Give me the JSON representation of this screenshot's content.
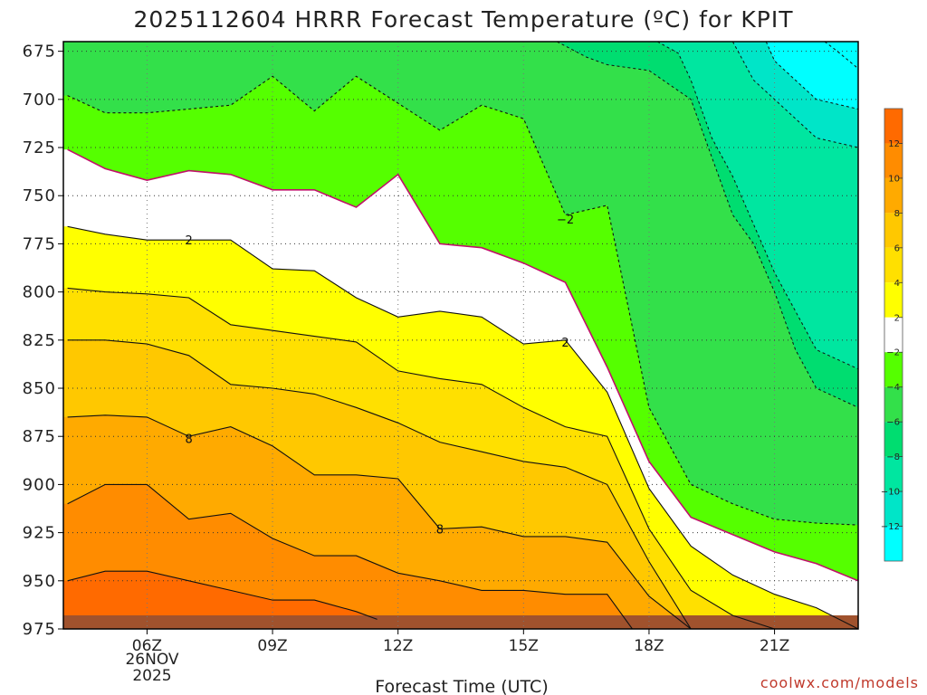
{
  "chart_data": {
    "type": "area",
    "title": "2025112604 HRRR Forecast Temperature (ºC) for KPIT",
    "xlabel": "Forecast Time (UTC)",
    "ylabel": "",
    "date_labels": [
      "26NOV",
      "2025"
    ],
    "credit": "coolwx.com/models",
    "x_range": [
      4,
      23
    ],
    "y_range": [
      975,
      670
    ],
    "x_ticks": [
      {
        "value": 6,
        "label": "06Z"
      },
      {
        "value": 9,
        "label": "09Z"
      },
      {
        "value": 12,
        "label": "12Z"
      },
      {
        "value": 15,
        "label": "15Z"
      },
      {
        "value": 18,
        "label": "18Z"
      },
      {
        "value": 21,
        "label": "21Z"
      }
    ],
    "y_ticks": [
      675,
      700,
      725,
      750,
      775,
      800,
      825,
      850,
      875,
      900,
      925,
      950,
      975
    ],
    "colorbar": {
      "levels": [
        -14,
        -12,
        -10,
        -8,
        -6,
        -4,
        -2,
        2,
        4,
        6,
        8,
        10,
        12,
        14
      ],
      "tick_labels": [
        "12",
        "10",
        "8",
        "6",
        "4",
        "2",
        "−2",
        "−4",
        "−6",
        "−8",
        "−10",
        "−12"
      ],
      "tick_values": [
        12,
        10,
        8,
        6,
        4,
        2,
        -2,
        -4,
        -6,
        -8,
        -10,
        -12
      ],
      "colors": [
        "#00FFFF",
        "#00E5C8",
        "#00E6A0",
        "#00DD70",
        "#33E04A",
        "#55FF00",
        "#FFFFFF",
        "#FFFF00",
        "#FFE000",
        "#FFC800",
        "#FFAA00",
        "#FF8C00",
        "#FF6A00"
      ]
    },
    "series": [
      {
        "name": "-2",
        "zone": "#55FF00",
        "points": [
          [
            4.1,
            698
          ],
          [
            5,
            707
          ],
          [
            6,
            707
          ],
          [
            7,
            705
          ],
          [
            8,
            703
          ],
          [
            9,
            688
          ],
          [
            10,
            706
          ],
          [
            11,
            688
          ],
          [
            12,
            702
          ],
          [
            13,
            716
          ],
          [
            14,
            703
          ],
          [
            15,
            710
          ],
          [
            16,
            760
          ],
          [
            17,
            755
          ],
          [
            18,
            860
          ],
          [
            19,
            900
          ],
          [
            20,
            910
          ],
          [
            21,
            918
          ],
          [
            22,
            920
          ],
          [
            23,
            921
          ]
        ]
      },
      {
        "name": "0",
        "zone": "#FFFFFF",
        "points": [
          [
            4.1,
            726
          ],
          [
            5,
            736
          ],
          [
            6,
            742
          ],
          [
            7,
            737
          ],
          [
            8,
            739
          ],
          [
            9,
            747
          ],
          [
            10,
            747
          ],
          [
            11,
            756
          ],
          [
            12,
            739
          ],
          [
            13,
            775
          ],
          [
            14,
            777
          ],
          [
            15,
            785
          ],
          [
            16,
            795
          ],
          [
            17,
            839
          ],
          [
            18,
            888
          ],
          [
            19,
            917
          ],
          [
            20,
            926
          ],
          [
            21,
            935
          ],
          [
            22,
            941
          ],
          [
            23,
            950
          ]
        ]
      },
      {
        "name": "2",
        "zone": "#FFFF00",
        "points": [
          [
            4.1,
            766
          ],
          [
            5,
            770
          ],
          [
            6,
            773
          ],
          [
            7,
            773
          ],
          [
            8,
            773
          ],
          [
            9,
            788
          ],
          [
            10,
            789
          ],
          [
            11,
            803
          ],
          [
            12,
            813
          ],
          [
            13,
            810
          ],
          [
            14,
            813
          ],
          [
            15,
            827
          ],
          [
            16,
            825
          ],
          [
            17,
            852
          ],
          [
            18,
            902
          ],
          [
            19,
            932
          ],
          [
            20,
            947
          ],
          [
            21,
            957
          ],
          [
            22,
            964
          ],
          [
            23,
            975
          ]
        ]
      },
      {
        "name": "4",
        "zone": "#FFE000",
        "points": [
          [
            4.1,
            798
          ],
          [
            5,
            800
          ],
          [
            6,
            801
          ],
          [
            7,
            803
          ],
          [
            8,
            817
          ],
          [
            9,
            820
          ],
          [
            10,
            823
          ],
          [
            11,
            826
          ],
          [
            12,
            841
          ],
          [
            13,
            845
          ],
          [
            14,
            848
          ],
          [
            15,
            860
          ],
          [
            16,
            870
          ],
          [
            17,
            875
          ],
          [
            18,
            923
          ],
          [
            19,
            955
          ],
          [
            20,
            968
          ],
          [
            21,
            975
          ]
        ]
      },
      {
        "name": "6",
        "zone": "#FFC800",
        "points": [
          [
            4.1,
            825
          ],
          [
            5,
            825
          ],
          [
            6,
            827
          ],
          [
            7,
            833
          ],
          [
            8,
            848
          ],
          [
            9,
            850
          ],
          [
            10,
            853
          ],
          [
            11,
            860
          ],
          [
            12,
            868
          ],
          [
            13,
            878
          ],
          [
            14,
            883
          ],
          [
            15,
            888
          ],
          [
            16,
            891
          ],
          [
            17,
            900
          ],
          [
            18,
            940
          ],
          [
            19,
            975
          ]
        ]
      },
      {
        "name": "8",
        "zone": "#FFAA00",
        "points": [
          [
            4.1,
            865
          ],
          [
            5,
            864
          ],
          [
            6,
            865
          ],
          [
            7,
            875
          ],
          [
            8,
            870
          ],
          [
            9,
            880
          ],
          [
            10,
            895
          ],
          [
            11,
            895
          ],
          [
            12,
            897
          ],
          [
            13,
            923
          ],
          [
            14,
            922
          ],
          [
            15,
            927
          ],
          [
            16,
            927
          ],
          [
            17,
            930
          ],
          [
            18,
            958
          ],
          [
            19,
            975
          ]
        ]
      },
      {
        "name": "10",
        "zone": "#FF8C00",
        "points": [
          [
            4.1,
            910
          ],
          [
            5,
            900
          ],
          [
            6,
            900
          ],
          [
            7,
            918
          ],
          [
            8,
            915
          ],
          [
            9,
            928
          ],
          [
            10,
            937
          ],
          [
            11,
            937
          ],
          [
            12,
            946
          ],
          [
            13,
            950
          ],
          [
            14,
            955
          ],
          [
            15,
            955
          ],
          [
            16,
            957
          ],
          [
            17,
            957
          ],
          [
            17.6,
            975
          ]
        ]
      },
      {
        "name": "12",
        "zone": "#FF6A00",
        "points": [
          [
            4.1,
            950
          ],
          [
            5,
            945
          ],
          [
            6,
            945
          ],
          [
            7,
            950
          ],
          [
            8,
            955
          ],
          [
            9,
            960
          ],
          [
            10,
            960
          ],
          [
            11,
            966
          ],
          [
            11.5,
            970
          ]
        ]
      }
    ],
    "cold_contours": [
      {
        "name": "-4",
        "points": [
          [
            15.8,
            670
          ],
          [
            16.5,
            678
          ],
          [
            17,
            682
          ],
          [
            18,
            685
          ],
          [
            19,
            700
          ],
          [
            19.5,
            730
          ],
          [
            20,
            760
          ],
          [
            20.5,
            775
          ],
          [
            21,
            800
          ],
          [
            21.5,
            830
          ],
          [
            22,
            850
          ],
          [
            23,
            860
          ]
        ]
      },
      {
        "name": "-6",
        "points": [
          [
            18.2,
            670
          ],
          [
            18.7,
            676
          ],
          [
            19,
            690
          ],
          [
            19.5,
            720
          ],
          [
            20,
            740
          ],
          [
            20.5,
            765
          ],
          [
            21,
            790
          ],
          [
            21.5,
            810
          ],
          [
            22,
            830
          ],
          [
            23,
            840
          ]
        ]
      },
      {
        "name": "-8",
        "points": [
          [
            20,
            670
          ],
          [
            20.5,
            690
          ],
          [
            21,
            700
          ],
          [
            21.5,
            710
          ],
          [
            22,
            720
          ],
          [
            23,
            725
          ]
        ]
      },
      {
        "name": "-10",
        "points": [
          [
            20.8,
            670
          ],
          [
            21,
            680
          ],
          [
            21.5,
            690
          ],
          [
            22,
            700
          ],
          [
            23,
            705
          ]
        ]
      },
      {
        "name": "-12",
        "points": [
          [
            22.2,
            670
          ],
          [
            22.5,
            675
          ],
          [
            23,
            684
          ]
        ]
      }
    ],
    "contour_labels": [
      {
        "text": "2",
        "x": 7,
        "y": 773
      },
      {
        "text": "8",
        "x": 7,
        "y": 876
      },
      {
        "text": "8",
        "x": 13,
        "y": 923
      },
      {
        "text": "−2",
        "x": 16,
        "y": 762
      },
      {
        "text": "2",
        "x": 16,
        "y": 826
      }
    ]
  }
}
